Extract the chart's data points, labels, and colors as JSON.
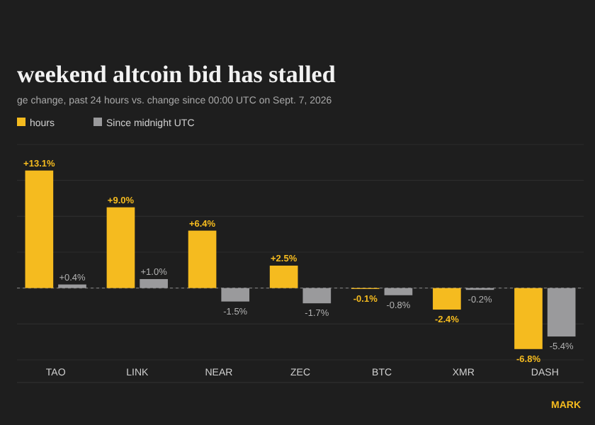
{
  "chart_data": {
    "type": "bar",
    "title": "weekend altcoin bid has stalled",
    "subtitle": "ge change, past 24 hours vs. change since 00:00 UTC on Sept. 7, 2026",
    "categories": [
      "TAO",
      "LINK",
      "NEAR",
      "ZEC",
      "BTC",
      "XMR",
      "DASH"
    ],
    "series": [
      {
        "name": "hours",
        "color": "#f5bb1f",
        "values": [
          13.1,
          9.0,
          6.4,
          2.5,
          -0.1,
          -2.4,
          -6.8
        ],
        "value_labels": [
          "+13.1%",
          "+9.0%",
          "+6.4%",
          "+2.5%",
          "-0.1%",
          "-2.4%",
          "-6.8%"
        ]
      },
      {
        "name": "Since midnight UTC",
        "color": "#9a9a9c",
        "values": [
          0.4,
          1.0,
          -1.5,
          -1.7,
          -0.8,
          -0.2,
          -5.4
        ],
        "value_labels": [
          "+0.4%",
          "+1.0%",
          "-1.5%",
          "-1.7%",
          "-0.8%",
          "-0.2%",
          "-5.4%"
        ]
      }
    ],
    "ref_lines": [
      {
        "axis": "y",
        "value": 0,
        "color": "#777777",
        "line_style": "dashed"
      }
    ],
    "yticks": [
      {
        "value": -8,
        "label": null
      },
      {
        "value": -4,
        "label": null
      },
      {
        "value": 0,
        "label": null
      },
      {
        "value": 4,
        "label": null
      },
      {
        "value": 8,
        "label": null
      },
      {
        "value": 12,
        "label": null
      },
      {
        "value": 16,
        "label": null
      }
    ],
    "grid": "y",
    "legend": "top left",
    "tick_labels": "x",
    "annotations": [
      "MARK"
    ]
  }
}
